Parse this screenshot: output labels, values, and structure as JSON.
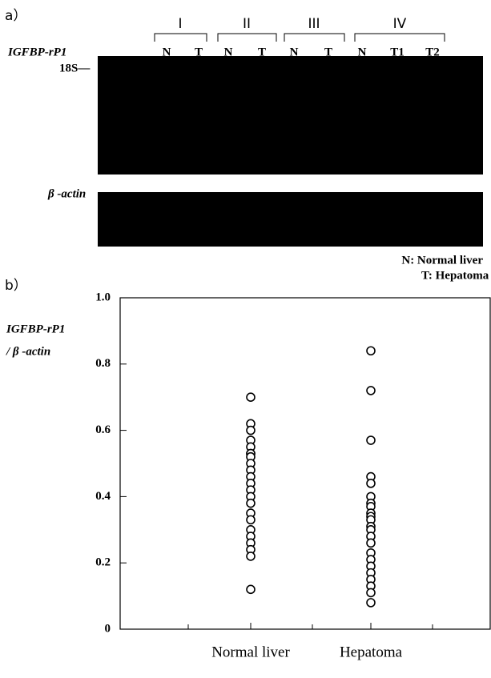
{
  "panel_a": {
    "label": "a）",
    "groups": [
      "I",
      "II",
      "III",
      "IV"
    ],
    "lanes": [
      "N",
      "T",
      "N",
      "T",
      "N",
      "T",
      "N",
      "T1",
      "T2"
    ],
    "probe": "IGFBP-rP1",
    "marker": "18S—",
    "control": "β -actin",
    "legend": [
      "N: Normal liver",
      "T: Hepatoma"
    ]
  },
  "chart_data": {
    "type": "strip",
    "panel_label": "b）",
    "y_label": [
      "IGFBP-rP1",
      "/ β -actin"
    ],
    "categories": [
      "Normal liver",
      "Hepatoma"
    ],
    "values": [
      [
        0.7,
        0.62,
        0.6,
        0.57,
        0.55,
        0.53,
        0.53,
        0.52,
        0.5,
        0.48,
        0.46,
        0.44,
        0.42,
        0.4,
        0.38,
        0.35,
        0.33,
        0.3,
        0.28,
        0.26,
        0.24,
        0.22,
        0.12
      ],
      [
        0.84,
        0.72,
        0.57,
        0.46,
        0.44,
        0.4,
        0.38,
        0.37,
        0.35,
        0.34,
        0.33,
        0.31,
        0.3,
        0.28,
        0.26,
        0.23,
        0.21,
        0.19,
        0.17,
        0.15,
        0.13,
        0.11,
        0.08
      ]
    ],
    "ylim": [
      0,
      1
    ],
    "yticks": [
      0,
      0.2,
      0.4,
      0.6,
      0.8,
      {
        "value": 1,
        "label": "1.0"
      }
    ]
  }
}
